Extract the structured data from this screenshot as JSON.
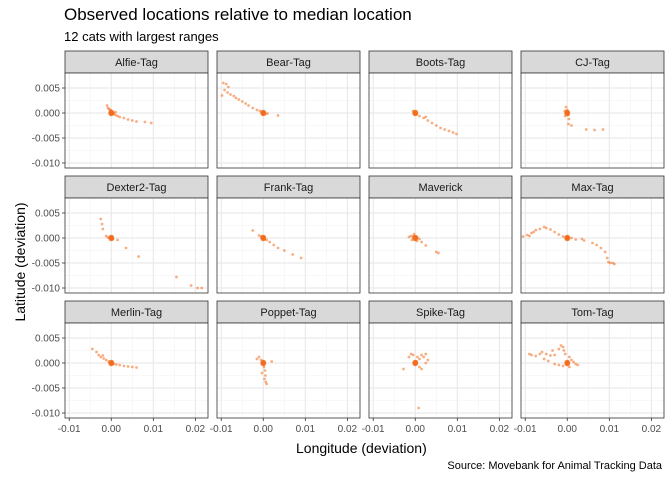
{
  "chart_data": {
    "type": "scatter",
    "title": "Observed locations relative to median location",
    "subtitle": "12 cats with largest ranges",
    "caption": "Source: Movebank for Animal Tracking Data",
    "xlabel": "Longitude (deviation)",
    "ylabel": "Latitude (deviation)",
    "xlim": [
      -0.011,
      0.023
    ],
    "ylim": [
      -0.011,
      0.008
    ],
    "xticks": [
      -0.01,
      0.0,
      0.01,
      0.02
    ],
    "xtick_labels": [
      "-0.01",
      "0.00",
      "0.01",
      "0.02"
    ],
    "yticks": [
      0.005,
      0.0,
      -0.005,
      -0.01
    ],
    "ytick_labels": [
      "0.005",
      "0.000",
      "-0.005",
      "-0.010"
    ],
    "grid": true,
    "point_color": "#F26B1D",
    "strip_color": "#D9D9D9",
    "facets": [
      {
        "label": "Alfie-Tag",
        "points": [
          [
            -0.001,
            0.0015
          ],
          [
            -0.0008,
            0.001
          ],
          [
            -0.0005,
            0.0008
          ],
          [
            -0.0003,
            0.0006
          ],
          [
            0.0,
            0.0005
          ],
          [
            0.0002,
            0.0003
          ],
          [
            0.0004,
            0.0
          ],
          [
            0.0006,
            -0.0002
          ],
          [
            0.001,
            -0.0004
          ],
          [
            0.0015,
            -0.0006
          ],
          [
            0.002,
            -0.0008
          ],
          [
            0.003,
            -0.001
          ],
          [
            0.004,
            -0.0013
          ],
          [
            0.005,
            -0.0015
          ],
          [
            0.006,
            -0.0017
          ],
          [
            0.008,
            -0.0018
          ],
          [
            0.0095,
            -0.002
          ],
          [
            0.001,
            0.0002
          ],
          [
            0.0005,
            0.0
          ]
        ]
      },
      {
        "label": "Bear-Tag",
        "points": [
          [
            -0.0095,
            0.006
          ],
          [
            -0.0088,
            0.0058
          ],
          [
            -0.0083,
            0.0052
          ],
          [
            -0.0092,
            0.0046
          ],
          [
            -0.0085,
            0.0041
          ],
          [
            -0.0078,
            0.0037
          ],
          [
            -0.007,
            0.0034
          ],
          [
            -0.0065,
            0.003
          ],
          [
            -0.0058,
            0.0027
          ],
          [
            -0.005,
            0.0023
          ],
          [
            -0.0042,
            0.0019
          ],
          [
            -0.0035,
            0.0015
          ],
          [
            -0.0025,
            0.001
          ],
          [
            -0.0015,
            0.0006
          ],
          [
            -0.0008,
            0.0004
          ],
          [
            -0.0003,
            0.0002
          ],
          [
            0.0,
            0.0
          ],
          [
            0.0005,
            -0.0002
          ],
          [
            0.001,
            -0.0001
          ],
          [
            0.0035,
            -0.0005
          ],
          [
            -0.0098,
            0.0035
          ]
        ]
      },
      {
        "label": "Boots-Tag",
        "points": [
          [
            -0.0005,
            0.0004
          ],
          [
            0.0,
            0.0
          ],
          [
            0.0003,
            -0.0003
          ],
          [
            0.001,
            -0.0006
          ],
          [
            0.002,
            -0.001
          ],
          [
            0.003,
            -0.0015
          ],
          [
            0.004,
            -0.002
          ],
          [
            0.005,
            -0.0025
          ],
          [
            0.006,
            -0.003
          ],
          [
            0.007,
            -0.0033
          ],
          [
            0.008,
            -0.0036
          ],
          [
            0.009,
            -0.0039
          ],
          [
            0.0098,
            -0.0042
          ],
          [
            0.0025,
            -0.0008
          ]
        ]
      },
      {
        "label": "CJ-Tag",
        "points": [
          [
            -0.0003,
            0.0012
          ],
          [
            0.0,
            0.0006
          ],
          [
            0.0,
            0.0
          ],
          [
            0.0002,
            -0.0004
          ],
          [
            -0.0005,
            -0.0006
          ],
          [
            0.0004,
            -0.0012
          ],
          [
            0.0003,
            -0.0022
          ],
          [
            0.001,
            -0.0025
          ],
          [
            0.0045,
            -0.0033
          ],
          [
            0.0065,
            -0.0034
          ],
          [
            0.0085,
            -0.0033
          ],
          [
            -0.0006,
            0.0004
          ]
        ]
      },
      {
        "label": "Dexter2-Tag",
        "points": [
          [
            -0.0025,
            0.0038
          ],
          [
            -0.0022,
            0.0028
          ],
          [
            -0.002,
            0.0018
          ],
          [
            -0.0012,
            0.0004
          ],
          [
            -0.0008,
            0.0001
          ],
          [
            0.0,
            0.0
          ],
          [
            0.0004,
            -0.0002
          ],
          [
            0.0015,
            -0.0004
          ],
          [
            0.0035,
            -0.002
          ],
          [
            0.0065,
            -0.0037
          ],
          [
            0.0155,
            -0.0078
          ],
          [
            0.019,
            -0.0095
          ],
          [
            0.0205,
            -0.01
          ],
          [
            0.0215,
            -0.01
          ]
        ]
      },
      {
        "label": "Frank-Tag",
        "points": [
          [
            -0.0025,
            0.0015
          ],
          [
            -0.001,
            0.0005
          ],
          [
            -0.0005,
            0.0003
          ],
          [
            0.0,
            0.0
          ],
          [
            0.0003,
            -0.0002
          ],
          [
            0.0008,
            -0.0004
          ],
          [
            0.0015,
            -0.0008
          ],
          [
            0.0025,
            -0.0014
          ],
          [
            0.0035,
            -0.002
          ],
          [
            0.005,
            -0.0025
          ],
          [
            0.007,
            -0.0033
          ],
          [
            0.009,
            -0.004
          ]
        ]
      },
      {
        "label": "Maverick",
        "points": [
          [
            -0.0015,
            0.0002
          ],
          [
            -0.001,
            0.0004
          ],
          [
            -0.0005,
            0.0003
          ],
          [
            0.0,
            0.0
          ],
          [
            0.0005,
            0.0001
          ],
          [
            0.001,
            -0.0002
          ],
          [
            -0.0008,
            -0.0004
          ],
          [
            0.0004,
            -0.0006
          ],
          [
            0.0015,
            -0.0008
          ],
          [
            0.0025,
            -0.0015
          ],
          [
            0.005,
            -0.0028
          ],
          [
            0.0055,
            -0.003
          ],
          [
            -0.0003,
            0.0008
          ]
        ]
      },
      {
        "label": "Max-Tag",
        "points": [
          [
            -0.0105,
            0.0003
          ],
          [
            -0.0095,
            0.0006
          ],
          [
            -0.009,
            0.0004
          ],
          [
            -0.0085,
            0.001
          ],
          [
            -0.008,
            0.0012
          ],
          [
            -0.0075,
            0.0016
          ],
          [
            -0.0065,
            0.0018
          ],
          [
            -0.0055,
            0.0022
          ],
          [
            -0.005,
            0.002
          ],
          [
            -0.004,
            0.0017
          ],
          [
            -0.003,
            0.0012
          ],
          [
            -0.002,
            0.0007
          ],
          [
            -0.001,
            0.0003
          ],
          [
            0.0,
            0.0
          ],
          [
            0.001,
            0.0
          ],
          [
            0.002,
            -0.0003
          ],
          [
            0.004,
            -0.0005
          ],
          [
            0.006,
            -0.001
          ],
          [
            0.007,
            -0.0014
          ],
          [
            0.008,
            -0.002
          ],
          [
            0.009,
            -0.0028
          ],
          [
            0.0095,
            -0.004
          ],
          [
            0.0098,
            -0.0048
          ],
          [
            0.0102,
            -0.005
          ],
          [
            0.0108,
            -0.005
          ],
          [
            0.0112,
            -0.0052
          ],
          [
            0.0035,
            -0.0002
          ]
        ]
      },
      {
        "label": "Merlin-Tag",
        "points": [
          [
            -0.0045,
            0.0028
          ],
          [
            -0.0035,
            0.0022
          ],
          [
            -0.003,
            0.0016
          ],
          [
            -0.0025,
            0.0012
          ],
          [
            -0.0018,
            0.0009
          ],
          [
            -0.0012,
            0.0006
          ],
          [
            -0.0006,
            0.0003
          ],
          [
            0.0,
            0.0
          ],
          [
            0.0006,
            -0.0002
          ],
          [
            0.0012,
            -0.0003
          ],
          [
            0.002,
            -0.0004
          ],
          [
            0.003,
            -0.0006
          ],
          [
            0.004,
            -0.0007
          ],
          [
            0.005,
            -0.0008
          ],
          [
            0.006,
            -0.0009
          ],
          [
            -0.002,
            0.0015
          ]
        ]
      },
      {
        "label": "Poppet-Tag",
        "points": [
          [
            -0.0015,
            0.0008
          ],
          [
            -0.001,
            0.0012
          ],
          [
            -0.0005,
            0.0006
          ],
          [
            0.0,
            0.0
          ],
          [
            0.0002,
            -0.0008
          ],
          [
            0.0004,
            -0.0015
          ],
          [
            -0.0003,
            -0.002
          ],
          [
            0.0005,
            -0.0025
          ],
          [
            0.0003,
            -0.0032
          ],
          [
            0.0006,
            -0.0038
          ],
          [
            0.0008,
            -0.0042
          ],
          [
            0.002,
            0.0003
          ]
        ]
      },
      {
        "label": "Spike-Tag",
        "points": [
          [
            -0.0028,
            -0.0012
          ],
          [
            -0.0015,
            0.0012
          ],
          [
            -0.001,
            0.0018
          ],
          [
            -0.0005,
            0.0016
          ],
          [
            0.0,
            0.0
          ],
          [
            0.0005,
            0.0012
          ],
          [
            0.001,
            0.0008
          ],
          [
            0.0015,
            0.0016
          ],
          [
            0.002,
            0.0012
          ],
          [
            0.0025,
            0.0018
          ],
          [
            0.003,
            0.0006
          ],
          [
            0.0025,
            0.0
          ],
          [
            0.001,
            -0.0008
          ],
          [
            0.0015,
            -0.0012
          ],
          [
            0.0008,
            -0.009
          ],
          [
            0.0003,
            0.0003
          ]
        ]
      },
      {
        "label": "Tom-Tag",
        "points": [
          [
            -0.009,
            0.0018
          ],
          [
            -0.0085,
            0.0016
          ],
          [
            -0.0075,
            0.0014
          ],
          [
            -0.0065,
            0.0018
          ],
          [
            -0.006,
            0.0022
          ],
          [
            -0.005,
            0.0018
          ],
          [
            -0.004,
            0.0015
          ],
          [
            -0.003,
            0.0016
          ],
          [
            -0.002,
            0.0028
          ],
          [
            -0.0015,
            0.0035
          ],
          [
            -0.001,
            0.0032
          ],
          [
            -0.0008,
            0.0025
          ],
          [
            -0.0005,
            0.0018
          ],
          [
            0.0,
            0.0
          ],
          [
            0.0005,
            0.0012
          ],
          [
            0.001,
            0.0006
          ],
          [
            0.0015,
            0.0002
          ],
          [
            0.002,
            -0.0002
          ],
          [
            0.0025,
            -0.0004
          ],
          [
            0.0005,
            -0.0008
          ],
          [
            -0.001,
            -0.0006
          ],
          [
            -0.002,
            -0.0004
          ],
          [
            -0.003,
            -0.0002
          ],
          [
            -0.0045,
            0.0004
          ],
          [
            -0.0035,
            0.0025
          ],
          [
            -0.0055,
            0.0008
          ]
        ]
      }
    ]
  }
}
